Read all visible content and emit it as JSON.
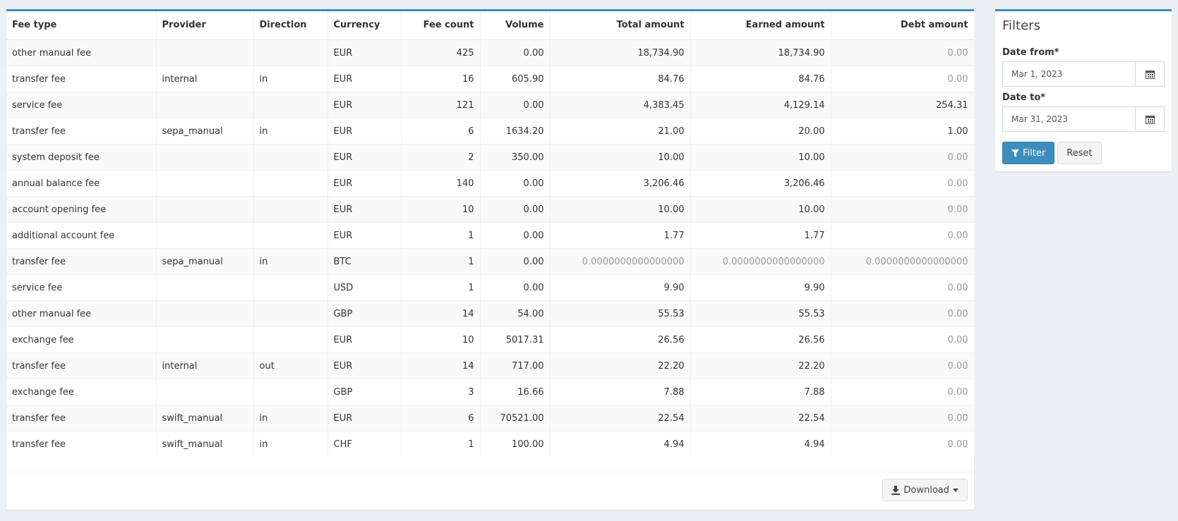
{
  "table": {
    "headers": [
      "Fee type",
      "Provider",
      "Direction",
      "Currency",
      "Fee count",
      "Volume",
      "Total amount",
      "Earned amount",
      "Debt amount"
    ],
    "rows": [
      [
        "other manual fee",
        "",
        "",
        "EUR",
        "425",
        "0.00",
        "18,734.90",
        "18,734.90",
        "0.00"
      ],
      [
        "transfer fee",
        "internal",
        "in",
        "EUR",
        "16",
        "605.90",
        "84.76",
        "84.76",
        "0.00"
      ],
      [
        "service fee",
        "",
        "",
        "EUR",
        "121",
        "0.00",
        "4,383.45",
        "4,129.14",
        "254.31"
      ],
      [
        "transfer fee",
        "sepa_manual",
        "in",
        "EUR",
        "6",
        "1634.20",
        "21.00",
        "20.00",
        "1.00"
      ],
      [
        "system deposit fee",
        "",
        "",
        "EUR",
        "2",
        "350.00",
        "10.00",
        "10.00",
        "0.00"
      ],
      [
        "annual balance fee",
        "",
        "",
        "EUR",
        "140",
        "0.00",
        "3,206.46",
        "3,206.46",
        "0.00"
      ],
      [
        "account opening fee",
        "",
        "",
        "EUR",
        "10",
        "0.00",
        "10.00",
        "10.00",
        "0.00"
      ],
      [
        "additional account fee",
        "",
        "",
        "EUR",
        "1",
        "0.00",
        "1.77",
        "1.77",
        "0.00"
      ],
      [
        "transfer fee",
        "sepa_manual",
        "in",
        "BTC",
        "1",
        "0.00",
        "0.0000000000000000",
        "0.0000000000000000",
        "0.0000000000000000"
      ],
      [
        "service fee",
        "",
        "",
        "USD",
        "1",
        "0.00",
        "9.90",
        "9.90",
        "0.00"
      ],
      [
        "other manual fee",
        "",
        "",
        "GBP",
        "14",
        "54.00",
        "55.53",
        "55.53",
        "0.00"
      ],
      [
        "exchange fee",
        "",
        "",
        "EUR",
        "10",
        "5017.31",
        "26.56",
        "26.56",
        "0.00"
      ],
      [
        "transfer fee",
        "internal",
        "out",
        "EUR",
        "14",
        "717.00",
        "22.20",
        "22.20",
        "0.00"
      ],
      [
        "exchange fee",
        "",
        "",
        "GBP",
        "3",
        "16.66",
        "7.88",
        "7.88",
        "0.00"
      ],
      [
        "transfer fee",
        "swift_manual",
        "in",
        "EUR",
        "6",
        "70521.00",
        "22.54",
        "22.54",
        "0.00"
      ],
      [
        "transfer fee",
        "swift_manual",
        "in",
        "CHF",
        "1",
        "100.00",
        "4.94",
        "4.94",
        "0.00"
      ]
    ],
    "download": "Download"
  },
  "filters": {
    "title": "Filters",
    "date_from": {
      "label": "Date from*",
      "value": "Mar 1, 2023"
    },
    "date_to": {
      "label": "Date to*",
      "value": "Mar 31, 2023"
    },
    "filter_button": "Filter",
    "reset_button": "Reset"
  }
}
